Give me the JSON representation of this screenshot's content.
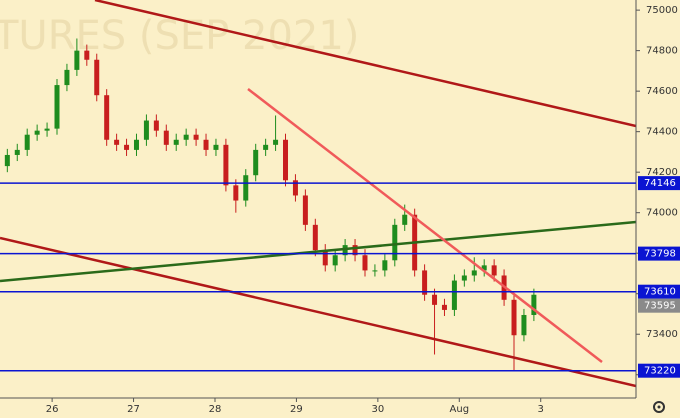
{
  "chart_data": {
    "type": "candlestick",
    "title": "TURES (SEP 2021)",
    "x": [
      -0.55,
      -0.428,
      -0.306,
      -0.184,
      -0.062,
      0.06,
      0.182,
      0.304,
      0.426,
      0.548,
      0.67,
      0.792,
      0.914,
      1.036,
      1.158,
      1.28,
      1.402,
      1.524,
      1.646,
      1.768,
      1.89,
      2.012,
      2.134,
      2.256,
      2.378,
      2.5,
      2.622,
      2.744,
      2.866,
      2.988,
      3.11,
      3.232,
      3.354,
      3.476,
      3.598,
      3.72,
      3.842,
      3.964,
      4.086,
      4.208,
      4.33,
      4.452,
      4.574,
      4.696,
      4.818,
      4.94,
      5.062,
      5.184,
      5.306,
      5.428,
      5.55,
      5.672,
      5.794,
      5.916
    ],
    "open": [
      74230,
      74285,
      74310,
      74385,
      74405,
      74415,
      74630,
      74705,
      74800,
      74755,
      74580,
      74360,
      74335,
      74310,
      74360,
      74455,
      74405,
      74335,
      74360,
      74385,
      74360,
      74310,
      74335,
      74135,
      74060,
      74185,
      74310,
      74335,
      74360,
      74160,
      74085,
      73940,
      73815,
      73740,
      73790,
      73840,
      73790,
      73715,
      73715,
      73765,
      73940,
      73990,
      73715,
      73595,
      73545,
      73520,
      73665,
      73690,
      73715,
      73740,
      73690,
      73570,
      73395,
      73495
    ],
    "high": [
      74315,
      74340,
      74415,
      74435,
      74445,
      74660,
      74735,
      74860,
      74830,
      74785,
      74610,
      74390,
      74365,
      74390,
      74485,
      74485,
      74435,
      74390,
      74415,
      74415,
      74390,
      74365,
      74365,
      74165,
      74215,
      74340,
      74365,
      74480,
      74390,
      74190,
      74115,
      73970,
      73845,
      73820,
      73870,
      73870,
      73820,
      73745,
      73795,
      73970,
      74040,
      74020,
      73745,
      73625,
      73575,
      73695,
      73720,
      73780,
      73770,
      73770,
      73720,
      73600,
      73525,
      73625
    ],
    "low": [
      74200,
      74255,
      74280,
      74355,
      74375,
      74385,
      74600,
      74675,
      74725,
      74550,
      74330,
      74305,
      74280,
      74280,
      74330,
      74375,
      74305,
      74305,
      74330,
      74330,
      74280,
      74280,
      74105,
      74000,
      74030,
      74155,
      74280,
      74305,
      74130,
      74055,
      73910,
      73785,
      73710,
      73710,
      73760,
      73760,
      73685,
      73685,
      73685,
      73735,
      73910,
      73685,
      73565,
      73300,
      73490,
      73490,
      73635,
      73660,
      73685,
      73660,
      73540,
      73220,
      73365,
      73465
    ],
    "close": [
      74285,
      74310,
      74385,
      74405,
      74415,
      74630,
      74705,
      74800,
      74755,
      74580,
      74360,
      74335,
      74310,
      74360,
      74455,
      74405,
      74335,
      74360,
      74385,
      74360,
      74310,
      74335,
      74135,
      74060,
      74185,
      74310,
      74335,
      74360,
      74160,
      74085,
      73940,
      73815,
      73740,
      73790,
      73840,
      73790,
      73715,
      73715,
      73765,
      73940,
      73990,
      73715,
      73595,
      73545,
      73520,
      73665,
      73690,
      73715,
      73740,
      73690,
      73570,
      73395,
      73495,
      73595
    ],
    "up_color": "#1e8c1e",
    "down_color": "#c81e1e",
    "xlim": [
      -0.64,
      7.17
    ],
    "xticks": [
      {
        "value": 0,
        "label": "26"
      },
      {
        "value": 1,
        "label": "27"
      },
      {
        "value": 2,
        "label": "28"
      },
      {
        "value": 3,
        "label": "29"
      },
      {
        "value": 4,
        "label": "30"
      },
      {
        "value": 5,
        "label": "Aug"
      },
      {
        "value": 6,
        "label": "3"
      }
    ],
    "ylim": [
      73100,
      75050
    ],
    "yticks": [
      73200,
      73400,
      73600,
      73800,
      74000,
      74200,
      74400,
      74600,
      74800,
      75000
    ],
    "levels": [
      {
        "value": 74146,
        "color": "#0a14d2"
      },
      {
        "value": 73798,
        "color": "#0a14d2"
      },
      {
        "value": 73610,
        "color": "#0a14d2"
      },
      {
        "value": 73220,
        "color": "#0a14d2"
      }
    ],
    "last_price": {
      "value": 73595,
      "color": "#8a8a8a"
    }
  }
}
